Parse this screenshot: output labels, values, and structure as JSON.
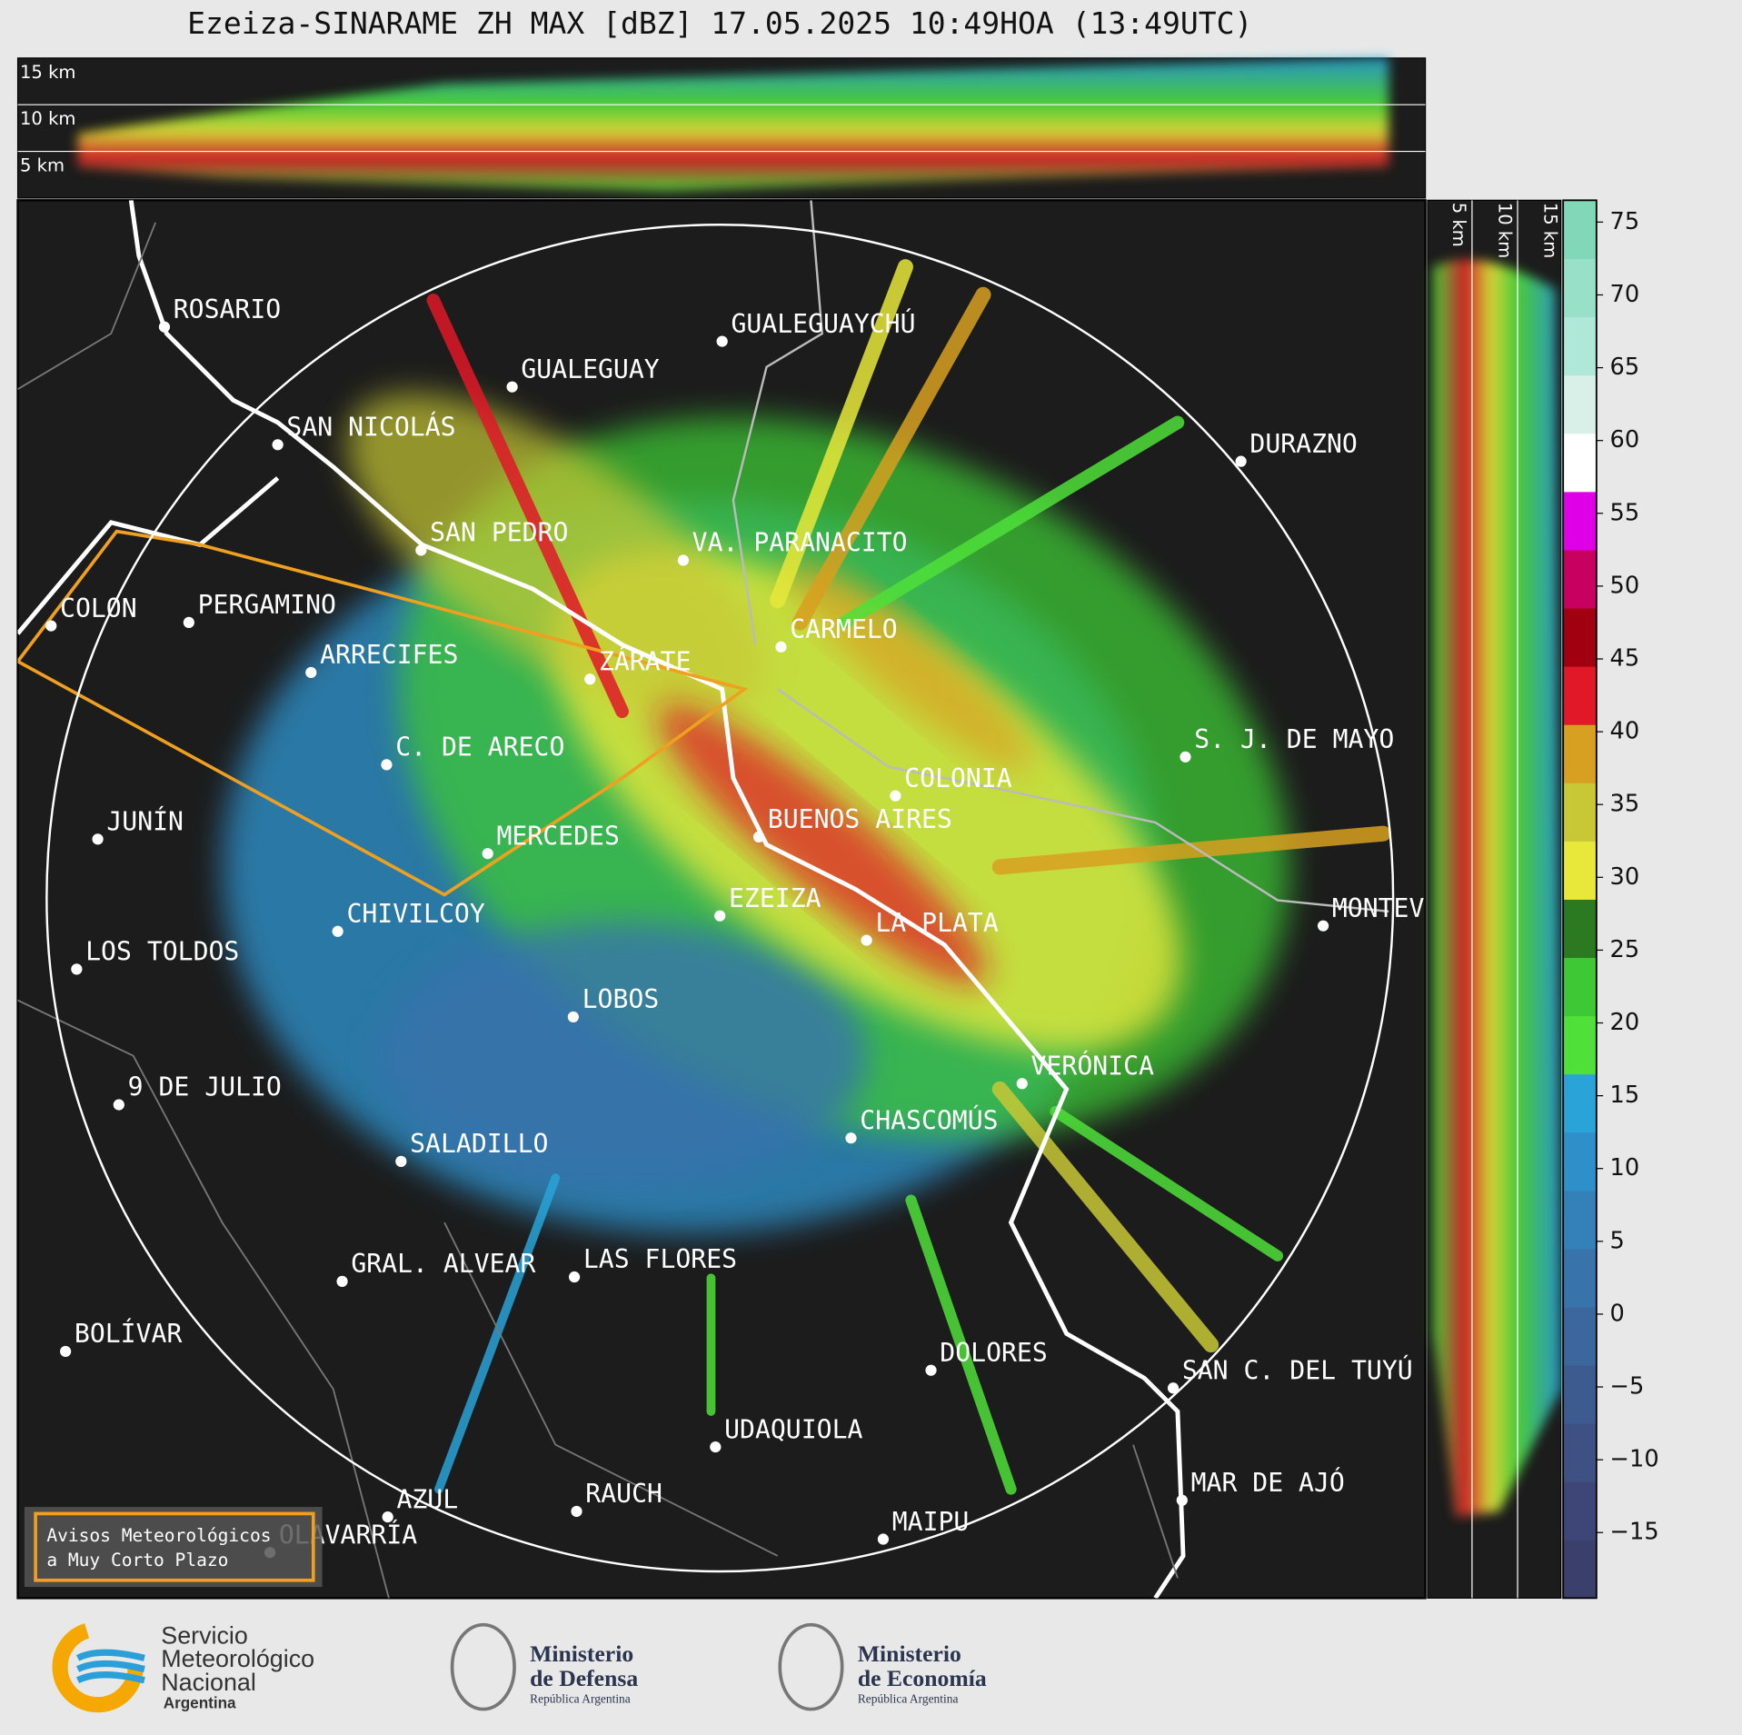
{
  "title": "Ezeiza-SINARAME ZH MAX [dBZ] 17.05.2025 10:49HOA (13:49UTC)",
  "top_panel_labels": [
    "15 km",
    "10 km",
    "5 km"
  ],
  "side_panel_labels": [
    "5 km",
    "10 km",
    "15 km"
  ],
  "cities": [
    "ROSARIO",
    "GUALEGUAYCHÚ",
    "GUALEGUAY",
    "SAN NICOLÁS",
    "DURAZNO",
    "SAN PEDRO",
    "VA. PARANACITO",
    "COLON",
    "PERGAMINO",
    "CARMELO",
    "ARRECIFES",
    "ZÁRATE",
    "C. DE ARECO",
    "S. J. DE MAYO",
    "COLONIA",
    "JUNÍN",
    "BUENOS AIRES",
    "MERCEDES",
    "MONTEVIDEO",
    "CHIVILCOY",
    "EZEIZA",
    "LA PLATA",
    "LOS TOLDOS",
    "LOBOS",
    "VERÓNICA",
    "9 DE JULIO",
    "CHASCOMÚS",
    "SALADILLO",
    "GRAL. ALVEAR",
    "LAS FLORES",
    "BOLÍVAR",
    "DOLORES",
    "SAN C. DEL TUYÚ",
    "UDAQUIOLA",
    "MAR DE AJÓ",
    "RAUCH",
    "AZUL",
    "OLAVARRÍA",
    "MAIPU"
  ],
  "colorbar": {
    "range": [
      -19.5,
      76.5
    ],
    "ticks": [
      75,
      70,
      65,
      60,
      55,
      50,
      45,
      40,
      35,
      30,
      25,
      20,
      15,
      10,
      5,
      0,
      {
        "value": -5,
        "label": "−5"
      },
      {
        "value": -10,
        "label": "−10"
      },
      {
        "value": -15,
        "label": "−15"
      }
    ],
    "colors": [
      "#3b3f6b",
      "#3e4677",
      "#3f5083",
      "#3e5b90",
      "#3c679d",
      "#3873ab",
      "#3481ba",
      "#2f8fc8",
      "#29a3d8",
      "#4fe03a",
      "#3ec836",
      "#2b7a22",
      "#e8e83a",
      "#c8c836",
      "#d8a020",
      "#e01828",
      "#a00010",
      "#c80060",
      "#e000e8",
      "#ffffff",
      "#d8f0e8",
      "#b0e8d8",
      "#98e0c8",
      "#80d8b8"
    ]
  },
  "warning_box": [
    "Avisos Meteorológicos",
    "a Muy Corto Plazo"
  ],
  "logos": {
    "smn": [
      "Servicio",
      "Meteorológico",
      "Nacional",
      "Argentina"
    ],
    "defensa": [
      "Ministerio",
      "de Defensa",
      "República Argentina"
    ],
    "economia": [
      "Ministerio",
      "de Economía",
      "República Argentina"
    ]
  }
}
